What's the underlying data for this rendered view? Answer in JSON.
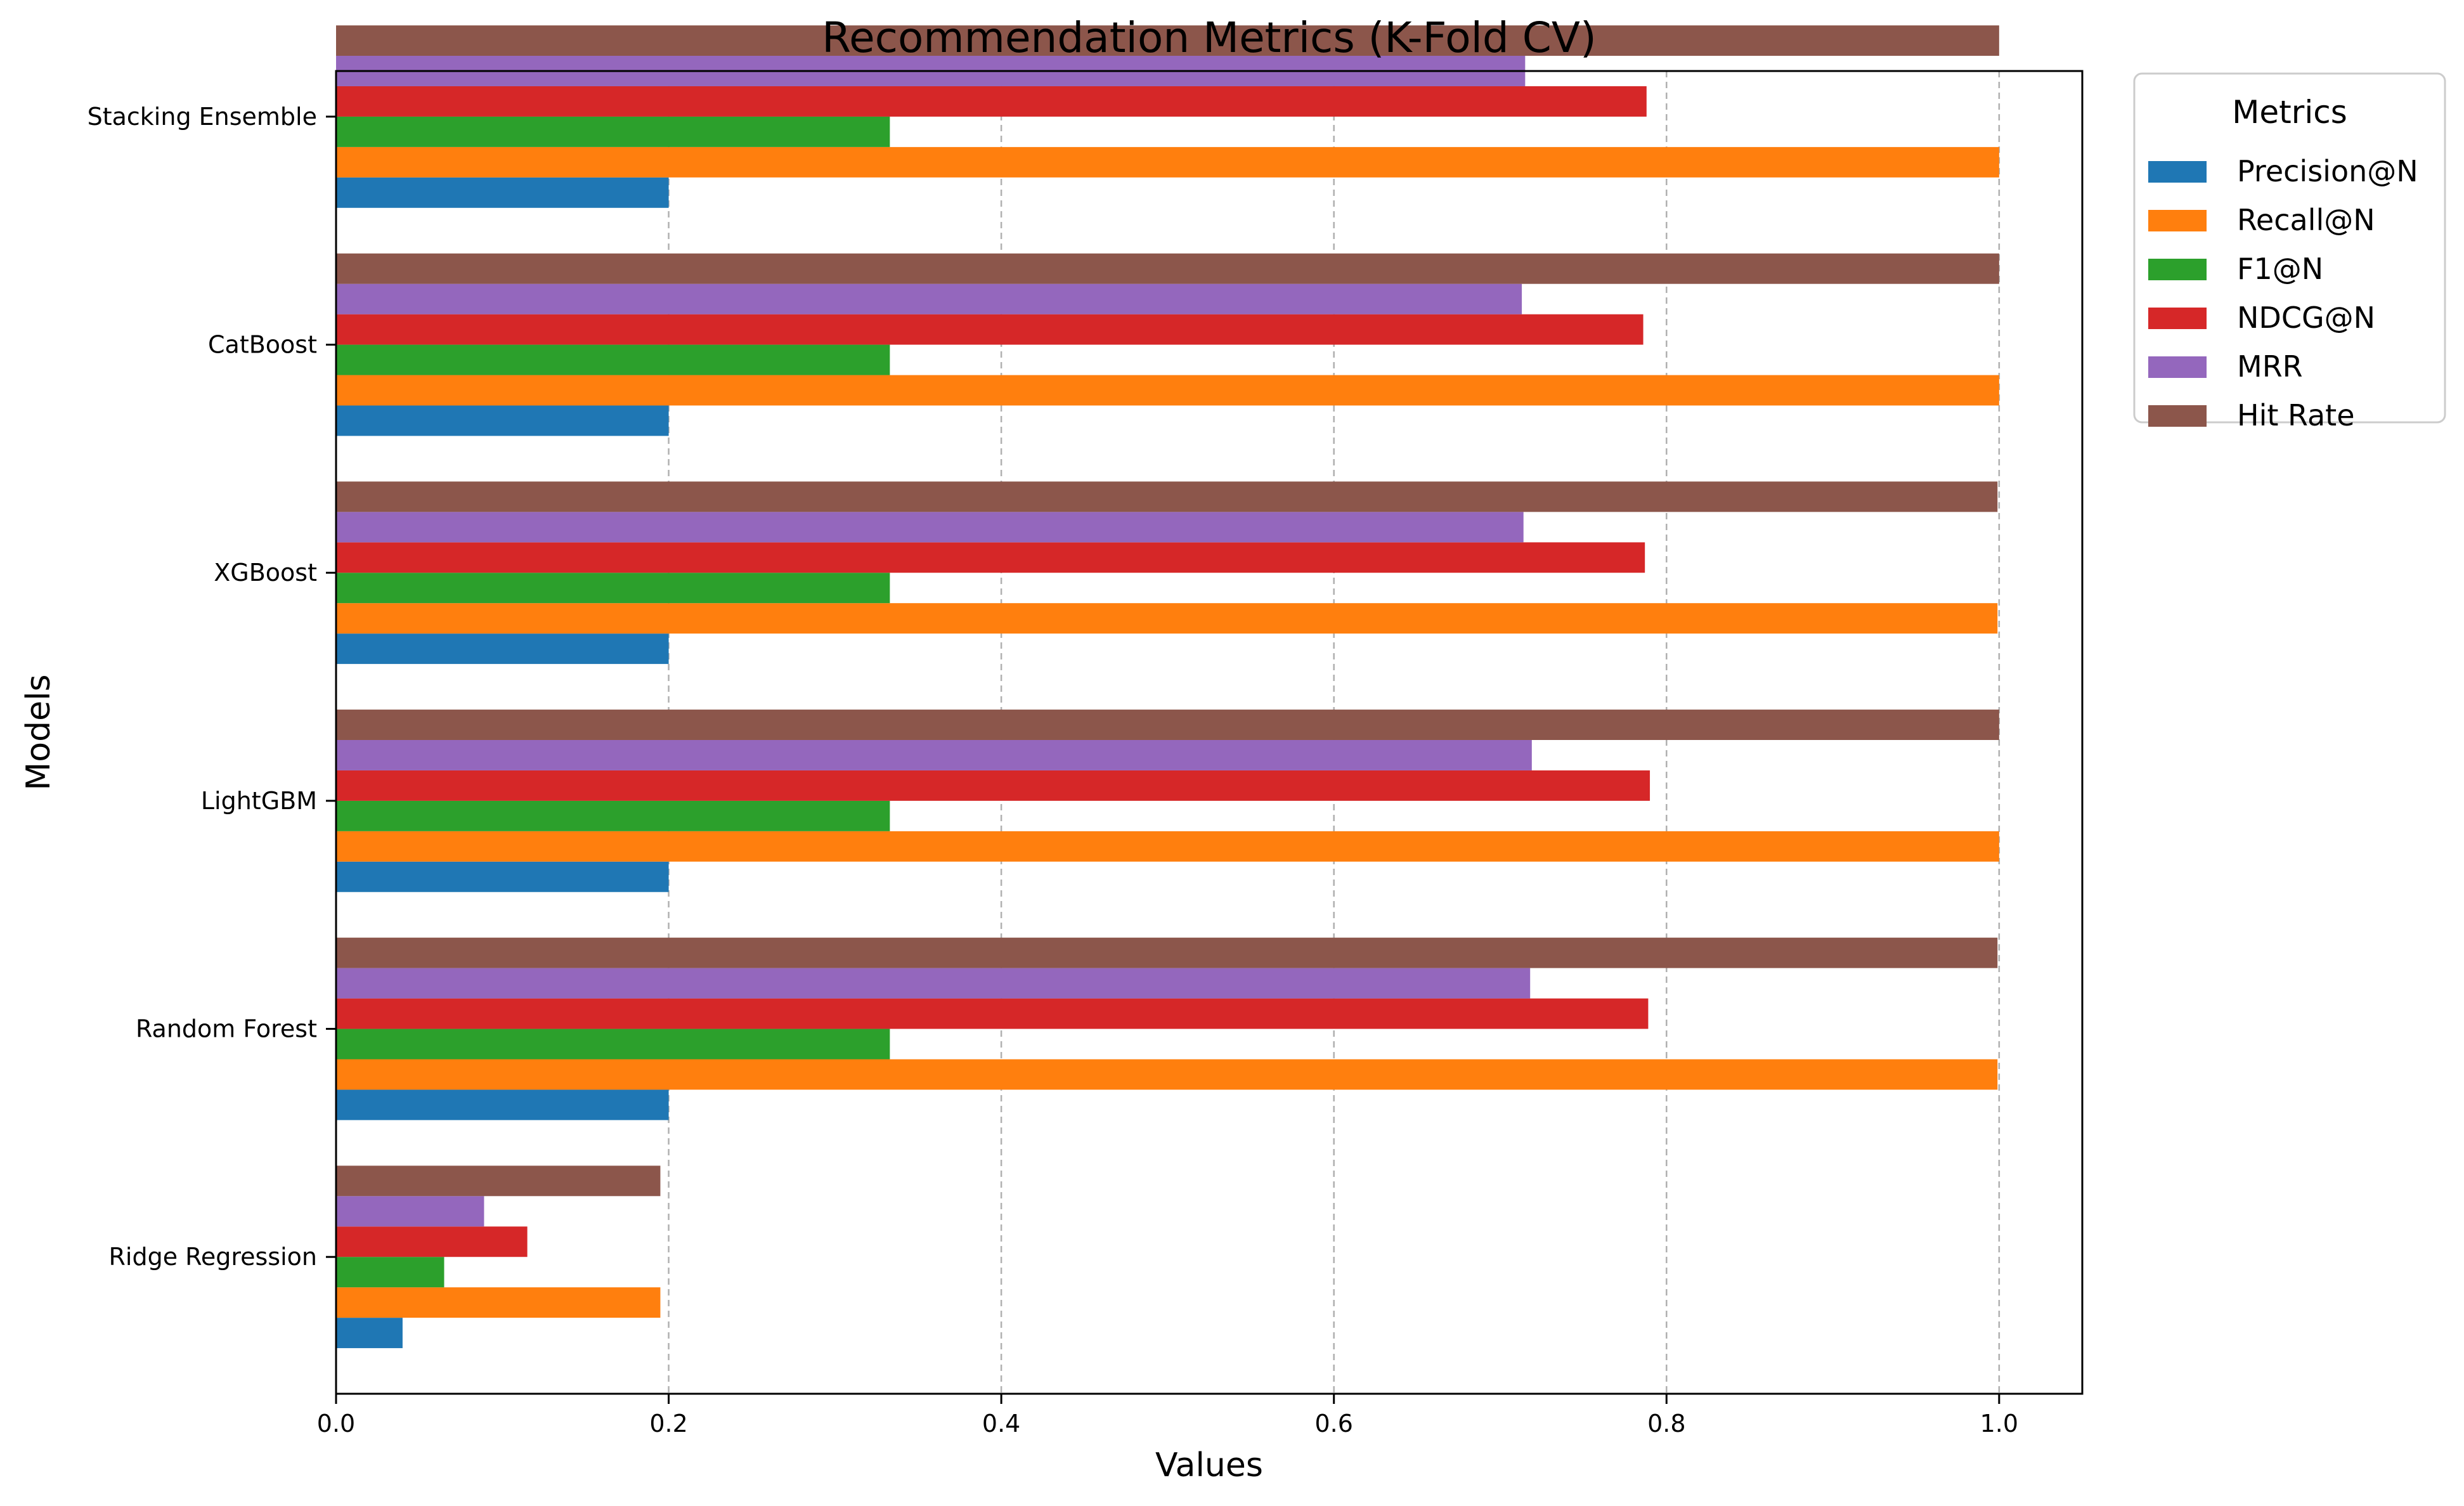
{
  "chart_data": {
    "type": "bar",
    "orientation": "horizontal",
    "title": "Recommendation Metrics (K-Fold CV)",
    "xlabel": "Values",
    "ylabel": "Models",
    "xlim": [
      0.0,
      1.05
    ],
    "xticks": [
      0.0,
      0.2,
      0.4,
      0.6,
      0.8,
      1.0
    ],
    "xtick_labels": [
      "0.0",
      "0.2",
      "0.4",
      "0.6",
      "0.8",
      "1.0"
    ],
    "grid": "x-dashed",
    "legend": {
      "title": "Metrics",
      "placement": "outside-top-right"
    },
    "categories": [
      "Ridge Regression",
      "Random Forest",
      "LightGBM",
      "XGBoost",
      "CatBoost",
      "Stacking Ensemble"
    ],
    "series": [
      {
        "name": "Precision@N",
        "color": "#1f77b4",
        "values": [
          0.04,
          0.2,
          0.2,
          0.2,
          0.2,
          0.2
        ]
      },
      {
        "name": "Recall@N",
        "color": "#ff7f0e",
        "values": [
          0.195,
          0.999,
          1.0,
          0.999,
          1.0,
          1.0
        ]
      },
      {
        "name": "F1@N",
        "color": "#2ca02c",
        "values": [
          0.065,
          0.333,
          0.333,
          0.333,
          0.333,
          0.333
        ]
      },
      {
        "name": "NDCG@N",
        "color": "#d62728",
        "values": [
          0.115,
          0.789,
          0.79,
          0.787,
          0.786,
          0.788
        ]
      },
      {
        "name": "MRR",
        "color": "#9467bd",
        "values": [
          0.089,
          0.718,
          0.719,
          0.714,
          0.713,
          0.715
        ]
      },
      {
        "name": "Hit Rate",
        "color": "#8c564b",
        "values": [
          0.195,
          0.999,
          1.0,
          0.999,
          1.0,
          1.0
        ]
      }
    ]
  }
}
